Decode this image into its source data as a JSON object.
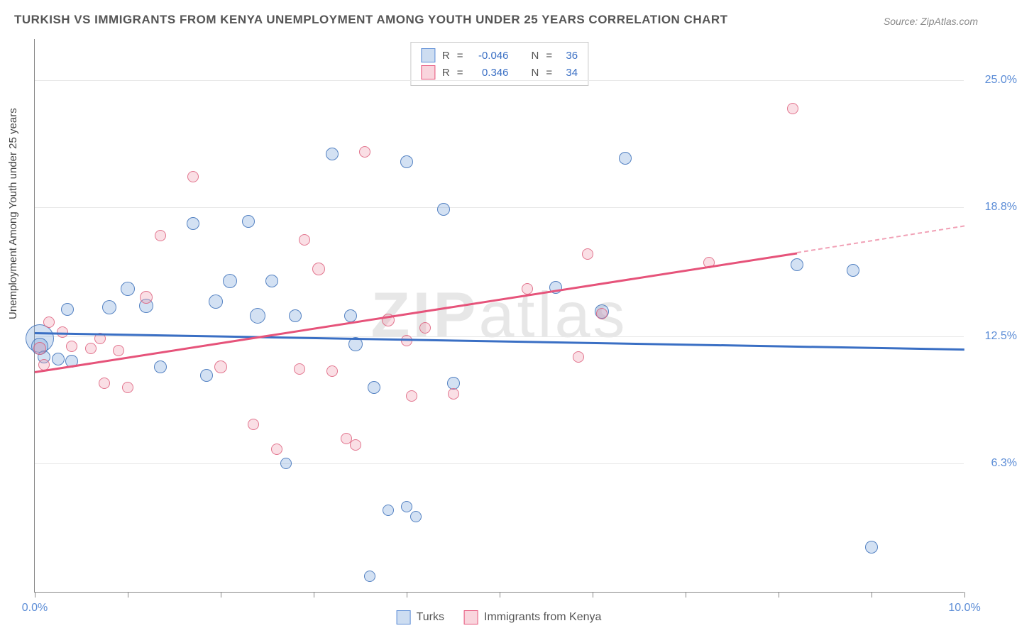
{
  "title": "TURKISH VS IMMIGRANTS FROM KENYA UNEMPLOYMENT AMONG YOUTH UNDER 25 YEARS CORRELATION CHART",
  "source": "Source: ZipAtlas.com",
  "y_axis_label": "Unemployment Among Youth under 25 years",
  "watermark": "ZIPatlas",
  "chart": {
    "type": "scatter-correlation",
    "background": "#ffffff",
    "grid_color": "#e8e8e8",
    "axis_color": "#888888",
    "x_range": [
      0,
      10
    ],
    "y_range": [
      0,
      27
    ],
    "x_ticks": [
      0,
      1,
      2,
      3,
      4,
      5,
      6,
      7,
      8,
      9,
      10
    ],
    "x_tick_labels": {
      "0": "0.0%",
      "10": "10.0%"
    },
    "y_gridlines": [
      6.3,
      12.5,
      18.8,
      25.0
    ],
    "y_tick_labels": [
      "6.3%",
      "12.5%",
      "18.8%",
      "25.0%"
    ],
    "series": [
      {
        "name": "Turks",
        "color_fill": "rgba(130,170,220,0.35)",
        "color_stroke": "#5b8cd6",
        "r_value": "-0.046",
        "n_value": "36",
        "trend": {
          "x1": 0,
          "y1": 12.7,
          "x2": 10,
          "y2": 11.9,
          "color": "#3a6fc4"
        },
        "points": [
          {
            "x": 0.05,
            "y": 12.4,
            "s": 40
          },
          {
            "x": 0.05,
            "y": 12.0,
            "s": 24
          },
          {
            "x": 0.1,
            "y": 11.5,
            "s": 18
          },
          {
            "x": 0.25,
            "y": 11.4,
            "s": 18
          },
          {
            "x": 0.4,
            "y": 11.3,
            "s": 18
          },
          {
            "x": 0.35,
            "y": 13.8,
            "s": 18
          },
          {
            "x": 0.8,
            "y": 13.9,
            "s": 20
          },
          {
            "x": 1.0,
            "y": 14.8,
            "s": 20
          },
          {
            "x": 1.2,
            "y": 14.0,
            "s": 20
          },
          {
            "x": 1.35,
            "y": 11.0,
            "s": 18
          },
          {
            "x": 1.7,
            "y": 18.0,
            "s": 18
          },
          {
            "x": 1.85,
            "y": 10.6,
            "s": 18
          },
          {
            "x": 1.95,
            "y": 14.2,
            "s": 20
          },
          {
            "x": 2.1,
            "y": 15.2,
            "s": 20
          },
          {
            "x": 2.3,
            "y": 18.1,
            "s": 18
          },
          {
            "x": 2.4,
            "y": 13.5,
            "s": 22
          },
          {
            "x": 2.55,
            "y": 15.2,
            "s": 18
          },
          {
            "x": 2.7,
            "y": 6.3,
            "s": 16
          },
          {
            "x": 2.8,
            "y": 13.5,
            "s": 18
          },
          {
            "x": 3.2,
            "y": 21.4,
            "s": 18
          },
          {
            "x": 3.4,
            "y": 13.5,
            "s": 18
          },
          {
            "x": 3.45,
            "y": 12.1,
            "s": 20
          },
          {
            "x": 3.6,
            "y": 0.8,
            "s": 16
          },
          {
            "x": 3.65,
            "y": 10.0,
            "s": 18
          },
          {
            "x": 3.8,
            "y": 4.0,
            "s": 16
          },
          {
            "x": 4.0,
            "y": 21.0,
            "s": 18
          },
          {
            "x": 4.0,
            "y": 4.2,
            "s": 16
          },
          {
            "x": 4.1,
            "y": 3.7,
            "s": 16
          },
          {
            "x": 4.4,
            "y": 18.7,
            "s": 18
          },
          {
            "x": 4.5,
            "y": 10.2,
            "s": 18
          },
          {
            "x": 5.6,
            "y": 14.9,
            "s": 18
          },
          {
            "x": 6.1,
            "y": 13.7,
            "s": 20
          },
          {
            "x": 6.35,
            "y": 21.2,
            "s": 18
          },
          {
            "x": 8.2,
            "y": 16.0,
            "s": 18
          },
          {
            "x": 8.8,
            "y": 15.7,
            "s": 18
          },
          {
            "x": 9.0,
            "y": 2.2,
            "s": 18
          }
        ]
      },
      {
        "name": "Immigrants from Kenya",
        "color_fill": "rgba(240,150,170,0.30)",
        "color_stroke": "#e6537a",
        "r_value": "0.346",
        "n_value": "34",
        "trend": {
          "x1": 0,
          "y1": 10.8,
          "x2": 8.2,
          "y2": 16.6,
          "color": "#e6537a",
          "dash_x2": 10,
          "dash_y2": 17.9
        },
        "points": [
          {
            "x": 0.05,
            "y": 11.9,
            "s": 18
          },
          {
            "x": 0.1,
            "y": 11.1,
            "s": 16
          },
          {
            "x": 0.15,
            "y": 13.2,
            "s": 16
          },
          {
            "x": 0.3,
            "y": 12.7,
            "s": 16
          },
          {
            "x": 0.4,
            "y": 12.0,
            "s": 16
          },
          {
            "x": 0.6,
            "y": 11.9,
            "s": 16
          },
          {
            "x": 0.7,
            "y": 12.4,
            "s": 16
          },
          {
            "x": 0.75,
            "y": 10.2,
            "s": 16
          },
          {
            "x": 0.9,
            "y": 11.8,
            "s": 16
          },
          {
            "x": 1.0,
            "y": 10.0,
            "s": 16
          },
          {
            "x": 1.2,
            "y": 14.4,
            "s": 18
          },
          {
            "x": 1.35,
            "y": 17.4,
            "s": 16
          },
          {
            "x": 1.7,
            "y": 20.3,
            "s": 16
          },
          {
            "x": 2.0,
            "y": 11.0,
            "s": 18
          },
          {
            "x": 2.35,
            "y": 8.2,
            "s": 16
          },
          {
            "x": 2.6,
            "y": 7.0,
            "s": 16
          },
          {
            "x": 2.85,
            "y": 10.9,
            "s": 16
          },
          {
            "x": 2.9,
            "y": 17.2,
            "s": 16
          },
          {
            "x": 3.05,
            "y": 15.8,
            "s": 18
          },
          {
            "x": 3.2,
            "y": 10.8,
            "s": 16
          },
          {
            "x": 3.35,
            "y": 7.5,
            "s": 16
          },
          {
            "x": 3.45,
            "y": 7.2,
            "s": 16
          },
          {
            "x": 3.55,
            "y": 21.5,
            "s": 16
          },
          {
            "x": 3.8,
            "y": 13.3,
            "s": 18
          },
          {
            "x": 4.0,
            "y": 12.3,
            "s": 16
          },
          {
            "x": 4.05,
            "y": 9.6,
            "s": 16
          },
          {
            "x": 4.2,
            "y": 12.9,
            "s": 16
          },
          {
            "x": 4.5,
            "y": 9.7,
            "s": 16
          },
          {
            "x": 5.3,
            "y": 14.8,
            "s": 16
          },
          {
            "x": 5.85,
            "y": 11.5,
            "s": 16
          },
          {
            "x": 5.95,
            "y": 16.5,
            "s": 16
          },
          {
            "x": 6.1,
            "y": 13.6,
            "s": 16
          },
          {
            "x": 7.25,
            "y": 16.1,
            "s": 16
          },
          {
            "x": 8.15,
            "y": 23.6,
            "s": 16
          }
        ]
      }
    ]
  },
  "legend_top_labels": {
    "r": "R",
    "eq": "=",
    "n": "N"
  },
  "legend_bottom": [
    "Turks",
    "Immigrants from Kenya"
  ]
}
